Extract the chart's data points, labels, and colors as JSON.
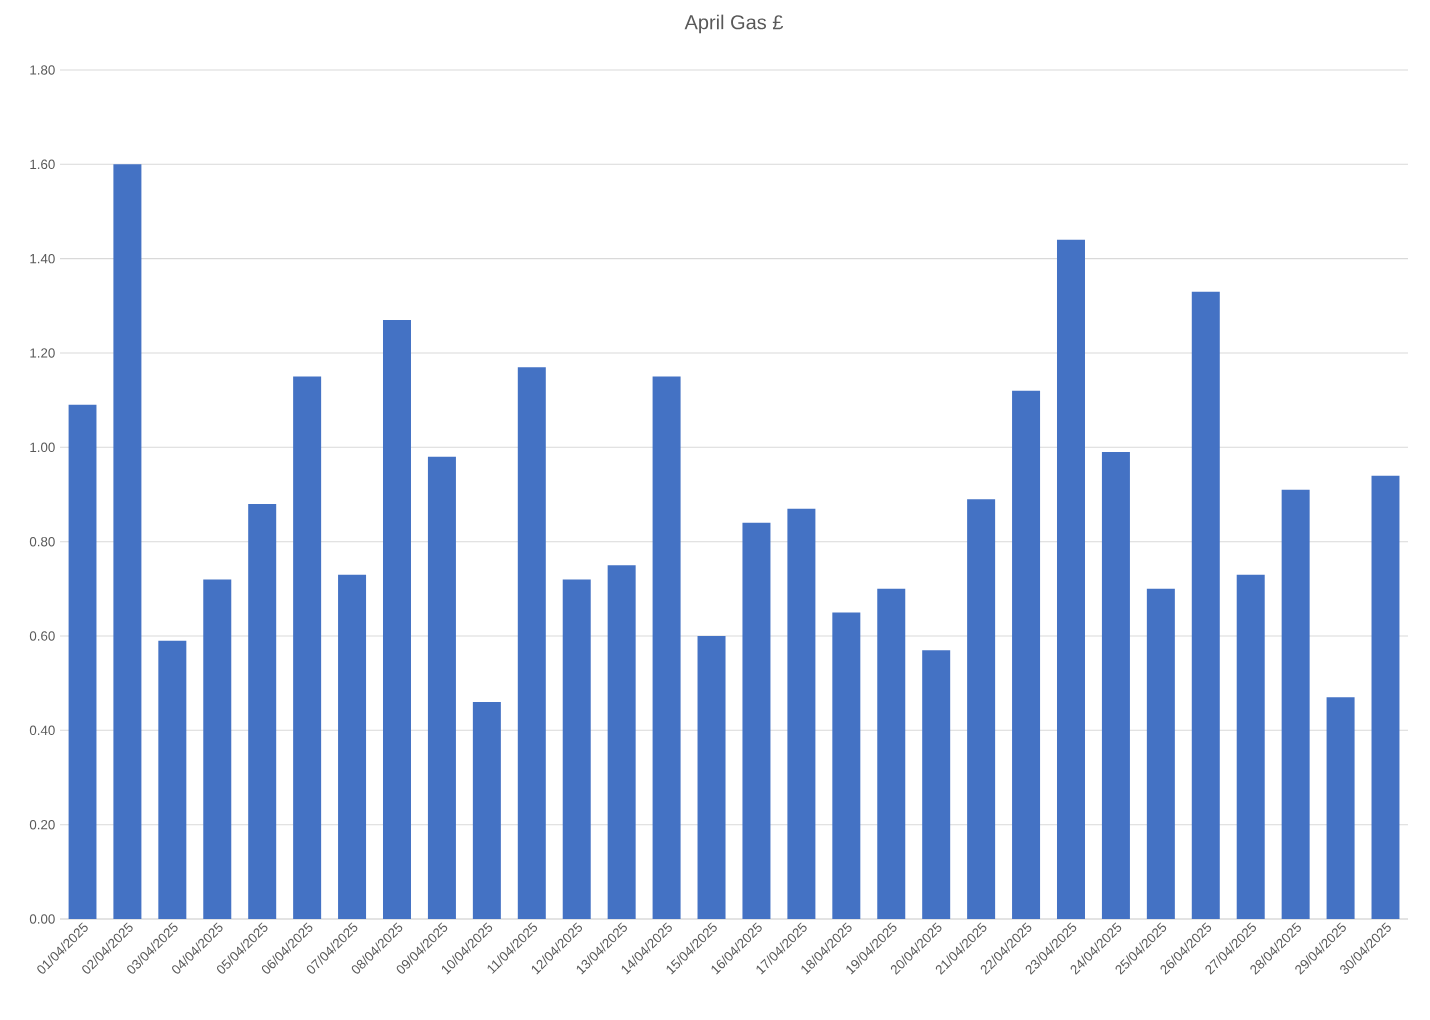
{
  "chart_data": {
    "type": "bar",
    "title": "April Gas £",
    "categories": [
      "01/04/2025",
      "02/04/2025",
      "03/04/2025",
      "04/04/2025",
      "05/04/2025",
      "06/04/2025",
      "07/04/2025",
      "08/04/2025",
      "09/04/2025",
      "10/04/2025",
      "11/04/2025",
      "12/04/2025",
      "13/04/2025",
      "14/04/2025",
      "15/04/2025",
      "16/04/2025",
      "17/04/2025",
      "18/04/2025",
      "19/04/2025",
      "20/04/2025",
      "21/04/2025",
      "22/04/2025",
      "23/04/2025",
      "24/04/2025",
      "25/04/2025",
      "26/04/2025",
      "27/04/2025",
      "28/04/2025",
      "29/04/2025",
      "30/04/2025"
    ],
    "values": [
      1.09,
      1.6,
      0.59,
      0.72,
      0.88,
      1.15,
      0.73,
      1.27,
      0.98,
      0.46,
      1.17,
      0.72,
      0.75,
      1.15,
      0.6,
      0.84,
      0.87,
      0.65,
      0.7,
      0.57,
      0.89,
      1.12,
      1.44,
      0.99,
      0.7,
      1.33,
      0.73,
      0.91,
      0.47,
      0.94
    ],
    "color": "#4472c4",
    "ylim": [
      0,
      1.8
    ],
    "yticks": [
      {
        "value": 0,
        "label": "0.00"
      },
      {
        "value": 0.2,
        "label": "0.20"
      },
      {
        "value": 0.4,
        "label": "0.40"
      },
      {
        "value": 0.6,
        "label": "0.60"
      },
      {
        "value": 0.8,
        "label": "0.80"
      },
      {
        "value": 1.0,
        "label": "1.00"
      },
      {
        "value": 1.2,
        "label": "1.20"
      },
      {
        "value": 1.4,
        "label": "1.40"
      },
      {
        "value": 1.6,
        "label": "1.60"
      },
      {
        "value": 1.8,
        "label": "1.80"
      }
    ],
    "grid": "y"
  }
}
